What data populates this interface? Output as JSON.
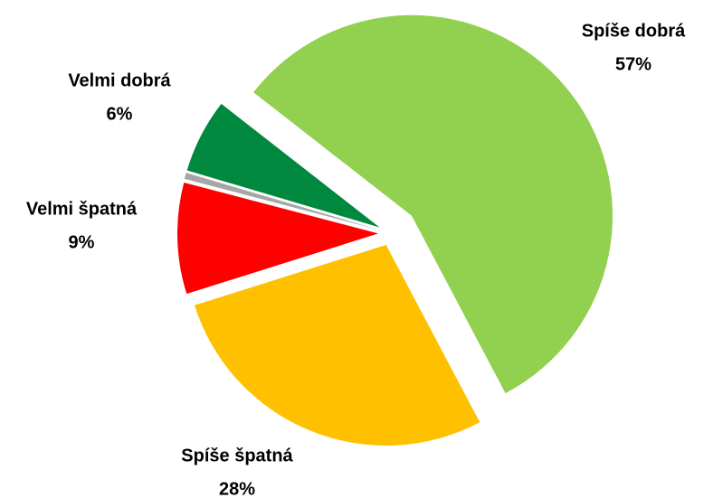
{
  "chart_data": {
    "type": "pie",
    "categories": [
      "Spíše dobrá",
      "Spíše špatná",
      "Velmi špatná",
      null,
      "Velmi dobrá"
    ],
    "values": [
      57,
      28,
      9,
      0.5,
      6
    ],
    "value_labels": [
      "57%",
      "28%",
      "9%",
      null,
      "6%"
    ],
    "colors": [
      "#92d050",
      "#ffc000",
      "#ff0000",
      "#a6a6a6",
      "#00883e"
    ]
  }
}
